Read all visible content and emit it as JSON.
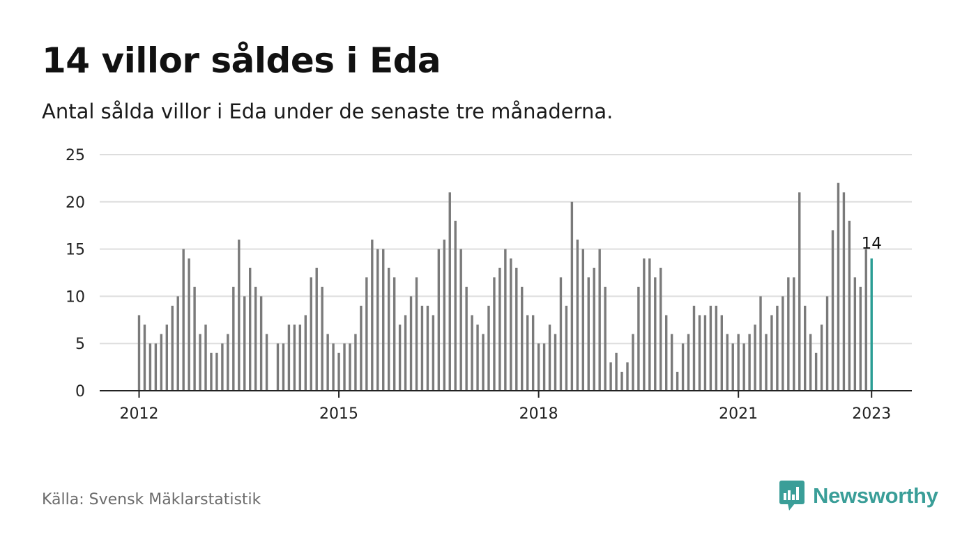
{
  "header": {
    "title": "14 villor såldes i Eda",
    "subtitle": "Antal sålda villor i Eda under de senaste tre månaderna."
  },
  "footer": {
    "source": "Källa: Svensk Mäklarstatistik",
    "brand": "Newsworthy",
    "brand_icon": "bar-chart-speech-bubble-icon"
  },
  "colors": {
    "bar": "#7a7a7a",
    "highlight": "#2a9d94",
    "grid": "#dddddd",
    "axis": "#222222",
    "brand": "#3a9e98"
  },
  "chart_data": {
    "type": "bar",
    "x_start": "2012-01",
    "x_tick_labels": [
      "2012",
      "2015",
      "2018",
      "2021",
      "2023"
    ],
    "y_ticks": [
      0,
      5,
      10,
      15,
      20,
      25
    ],
    "ylim": [
      0,
      25
    ],
    "grid": true,
    "highlight_label": "14",
    "values": [
      8,
      7,
      5,
      5,
      6,
      7,
      9,
      10,
      15,
      14,
      11,
      6,
      7,
      4,
      4,
      5,
      6,
      11,
      16,
      10,
      13,
      11,
      10,
      6,
      0,
      5,
      5,
      7,
      7,
      7,
      8,
      12,
      13,
      11,
      6,
      5,
      4,
      5,
      5,
      6,
      9,
      12,
      16,
      15,
      15,
      13,
      12,
      7,
      8,
      10,
      12,
      9,
      9,
      8,
      15,
      16,
      21,
      18,
      15,
      11,
      8,
      7,
      6,
      9,
      12,
      13,
      15,
      14,
      13,
      11,
      8,
      8,
      5,
      5,
      7,
      6,
      12,
      9,
      20,
      16,
      15,
      12,
      13,
      15,
      11,
      3,
      4,
      2,
      3,
      6,
      11,
      14,
      14,
      12,
      13,
      8,
      6,
      2,
      5,
      6,
      9,
      8,
      8,
      9,
      9,
      8,
      6,
      5,
      6,
      5,
      6,
      7,
      10,
      6,
      8,
      9,
      10,
      12,
      12,
      21,
      9,
      6,
      4,
      7,
      10,
      17,
      22,
      21,
      18,
      12,
      11,
      15,
      14
    ]
  }
}
